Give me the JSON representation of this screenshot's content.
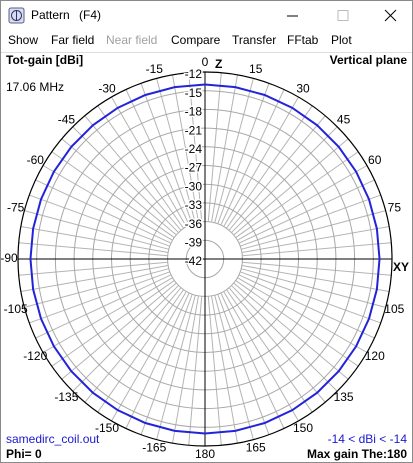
{
  "window": {
    "title": "Pattern",
    "shortcut": "(F4)"
  },
  "menu": [
    {
      "label": "Show",
      "enabled": true
    },
    {
      "label": "Far field",
      "enabled": true
    },
    {
      "label": "Near field",
      "enabled": false
    },
    {
      "label": "Compare",
      "enabled": true
    },
    {
      "label": "Transfer",
      "enabled": true
    },
    {
      "label": "FFtab",
      "enabled": true
    },
    {
      "label": "Plot",
      "enabled": true
    }
  ],
  "chart_data": {
    "type": "polar",
    "title": "Tot-gain [dBi]",
    "plane": "Vertical plane",
    "frequency": "17.06 MHz",
    "top_axis_label": "Z",
    "right_axis_label": "XY",
    "rlim": [
      -42,
      -12
    ],
    "rticks": [
      -42,
      -39,
      -36,
      -33,
      -30,
      -27,
      -24,
      -21,
      -18,
      -15,
      -12
    ],
    "angle_ticks": [
      0,
      15,
      30,
      45,
      60,
      75,
      105,
      120,
      135,
      150,
      165,
      180,
      -165,
      -150,
      -135,
      -120,
      -105,
      -90,
      -75,
      -60,
      -45,
      -30,
      -15
    ],
    "grid": true,
    "series": [
      {
        "color": "#2323d8",
        "theta": [
          0,
          10,
          20,
          30,
          40,
          50,
          60,
          70,
          80,
          90,
          100,
          110,
          120,
          130,
          140,
          150,
          160,
          170,
          180,
          190,
          200,
          210,
          220,
          230,
          240,
          250,
          260,
          270,
          280,
          290,
          300,
          310,
          320,
          330,
          340,
          350
        ],
        "values": [
          -14,
          -14,
          -14,
          -14,
          -14,
          -14,
          -14,
          -14,
          -14,
          -14,
          -14,
          -14,
          -14,
          -14,
          -14,
          -14,
          -14,
          -14,
          -14,
          -14,
          -14,
          -14,
          -14,
          -14,
          -14,
          -14,
          -14,
          -14,
          -14,
          -14,
          -14,
          -14,
          -14,
          -14,
          -14,
          -14
        ]
      }
    ],
    "file": "samedirc_coil.out",
    "phi": "Phi= 0",
    "range_text": "-14 < dBi < -14",
    "max_gain": "Max gain The:180"
  }
}
